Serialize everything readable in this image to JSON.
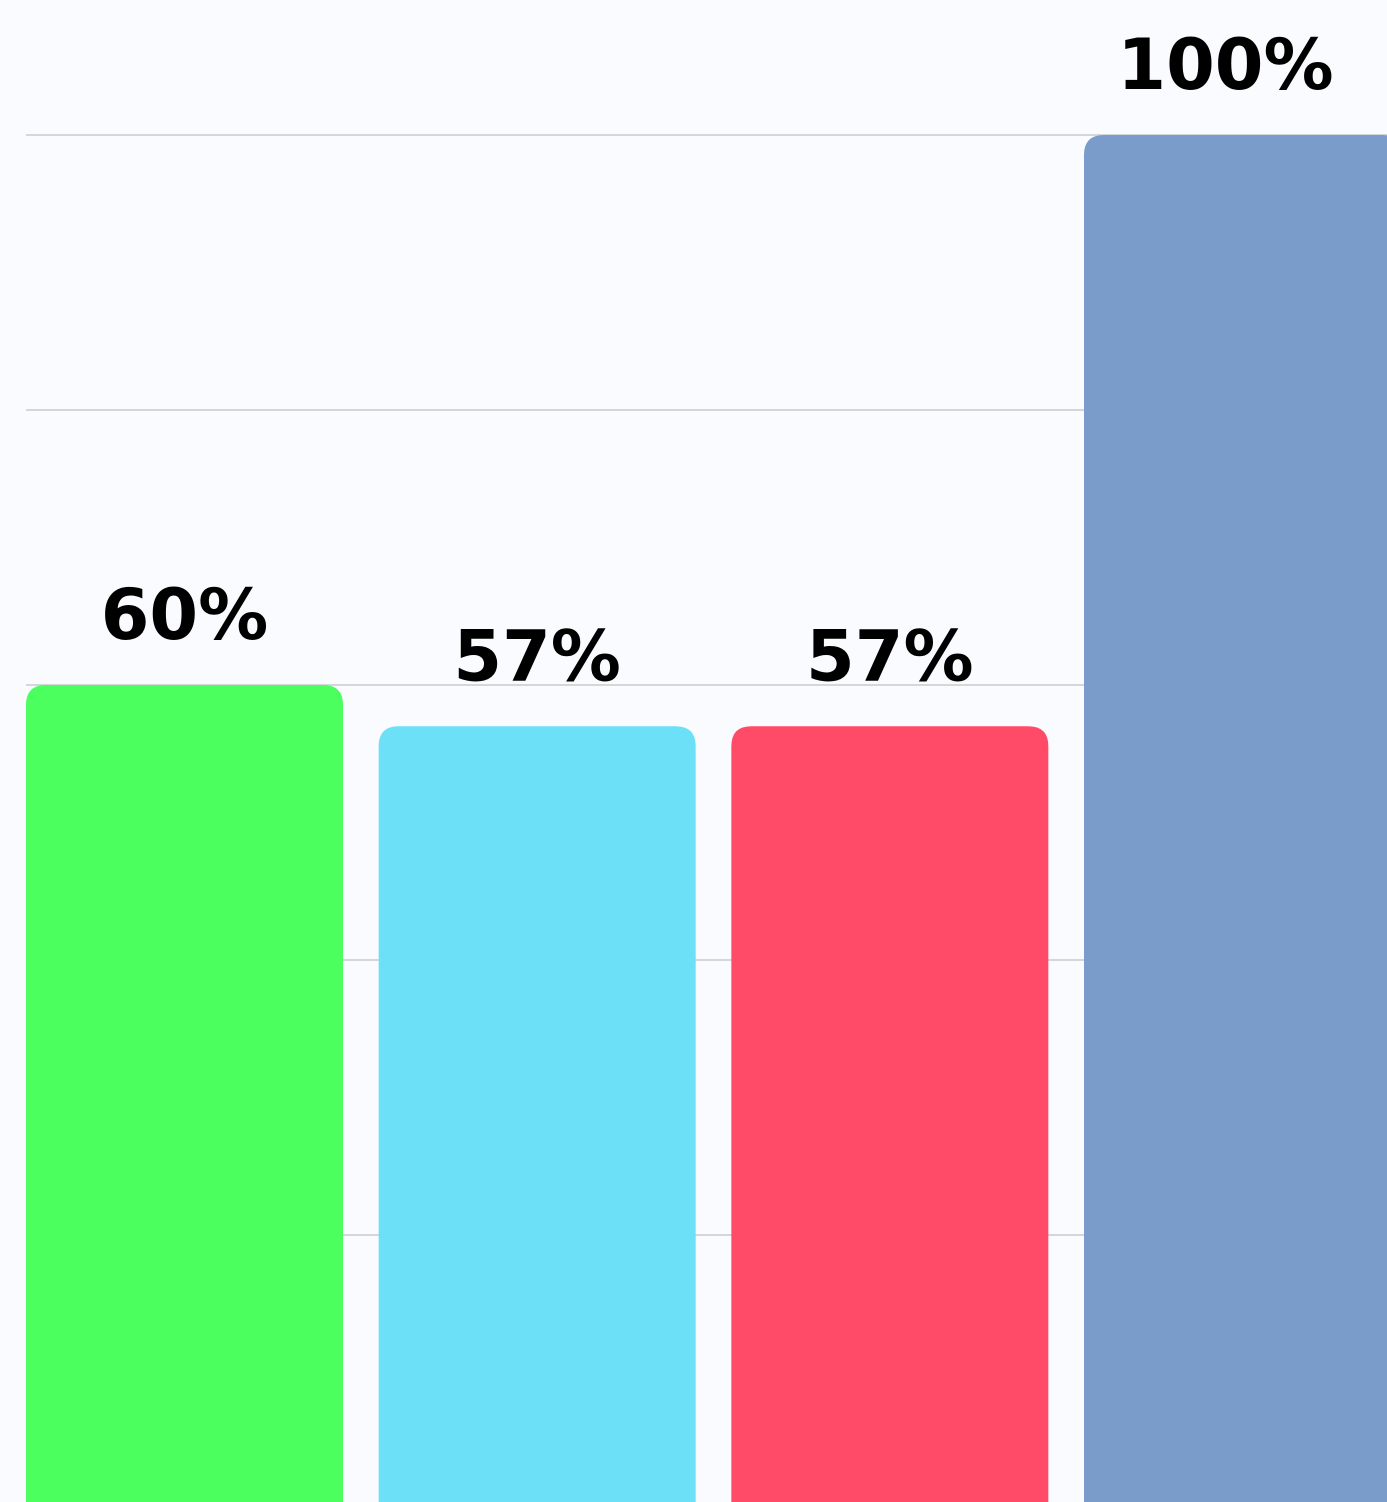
{
  "chart_data": {
    "type": "bar",
    "values": [
      60,
      57,
      57,
      100
    ],
    "value_labels": [
      "60%",
      "57%",
      "57%",
      "100%"
    ],
    "colors": [
      "#4aff5e",
      "#6ce0f7",
      "#ff4a68",
      "#7a9ccb"
    ],
    "ylim": [
      0,
      100
    ],
    "yticks": [
      20,
      40,
      60,
      80,
      100
    ],
    "grid": true
  }
}
